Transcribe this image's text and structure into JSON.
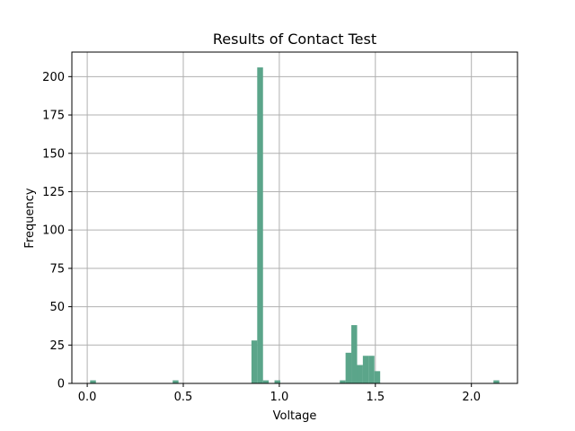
{
  "chart_data": {
    "type": "bar",
    "title": "Results of Contact Test",
    "xlabel": "Voltage",
    "ylabel": "Frequency",
    "xlim": [
      -0.08,
      2.24
    ],
    "ylim": [
      0,
      216
    ],
    "xticks": [
      0.0,
      0.5,
      1.0,
      1.5,
      2.0
    ],
    "xtick_labels": [
      "0.0",
      "0.5",
      "1.0",
      "1.5",
      "2.0"
    ],
    "yticks": [
      0,
      25,
      50,
      75,
      100,
      125,
      150,
      175,
      200
    ],
    "ytick_labels": [
      "0",
      "25",
      "50",
      "75",
      "100",
      "125",
      "150",
      "175",
      "200"
    ],
    "grid": true,
    "bar_color": "#5ba58a",
    "bin_width": 0.0302,
    "bins": [
      {
        "x": 0.03,
        "y": 2
      },
      {
        "x": 0.46,
        "y": 2
      },
      {
        "x": 0.87,
        "y": 28
      },
      {
        "x": 0.9,
        "y": 206
      },
      {
        "x": 0.93,
        "y": 2
      },
      {
        "x": 0.99,
        "y": 2
      },
      {
        "x": 1.33,
        "y": 2
      },
      {
        "x": 1.36,
        "y": 20
      },
      {
        "x": 1.39,
        "y": 38
      },
      {
        "x": 1.42,
        "y": 12
      },
      {
        "x": 1.45,
        "y": 18
      },
      {
        "x": 1.48,
        "y": 18
      },
      {
        "x": 1.51,
        "y": 8
      },
      {
        "x": 2.13,
        "y": 2
      }
    ]
  }
}
